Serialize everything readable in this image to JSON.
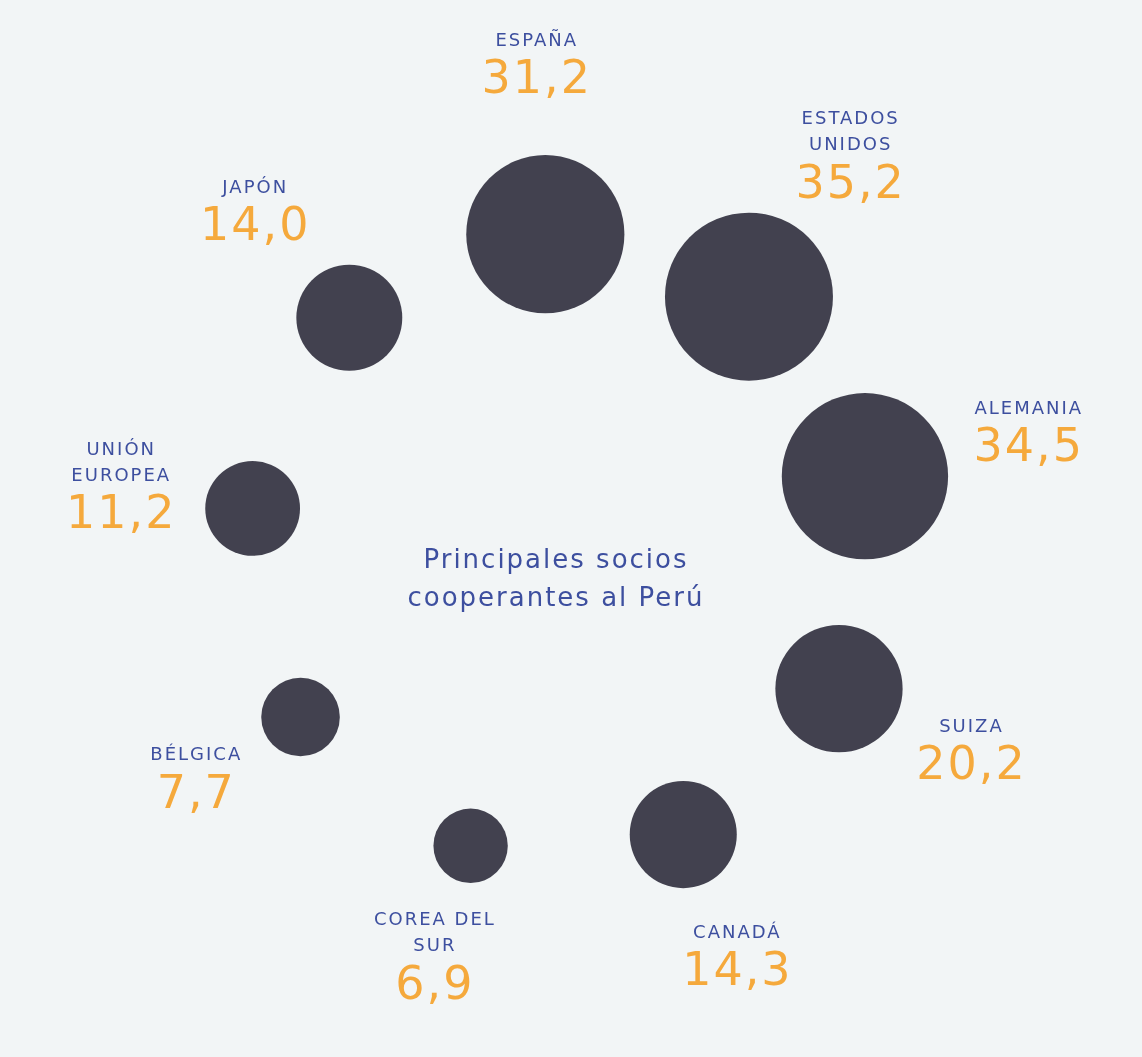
{
  "chart_data": {
    "type": "other",
    "title": "Principales socios cooperantes al Perú",
    "categories": [
      "ESPAÑA",
      "ESTADOS UNIDOS",
      "ALEMANIA",
      "SUIZA",
      "CANADÁ",
      "COREA DEL SUR",
      "BÉLGICA",
      "UNIÓN EUROPEA",
      "JAPÓN"
    ],
    "values": [
      31.2,
      35.2,
      34.5,
      20.2,
      14.3,
      6.9,
      7.7,
      11.2,
      14.0
    ],
    "value_labels": [
      "31,2",
      "35,2",
      "34,5",
      "20,2",
      "14,3",
      "6,9",
      "7,7",
      "11,2",
      "14,0"
    ],
    "color": "#42414f"
  }
}
